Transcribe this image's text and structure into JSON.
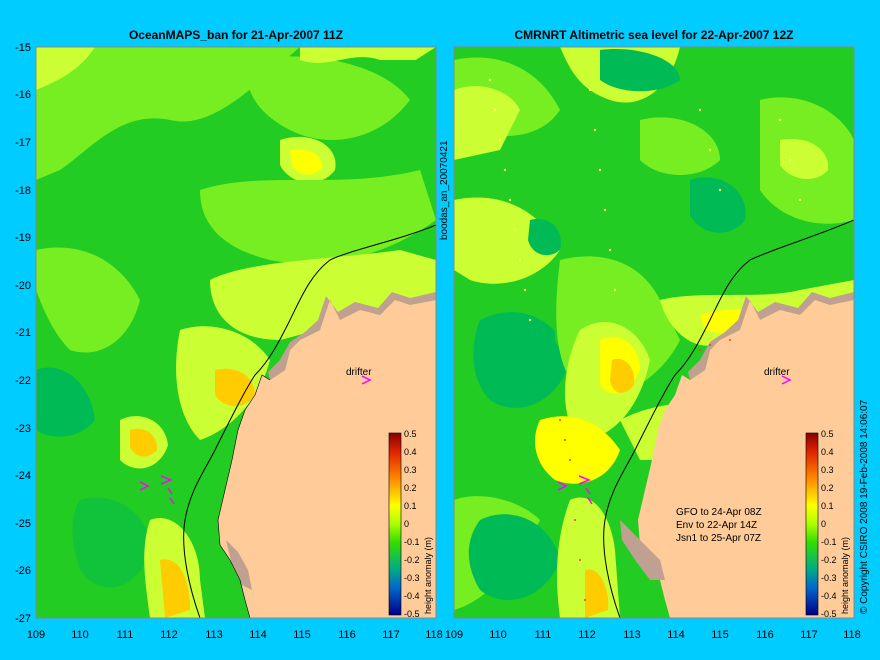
{
  "left_panel": {
    "title": "OceanMAPS_ban for 21-Apr-2007 11Z",
    "label": "drifter",
    "vertical_caption": "boodas_an_20070421"
  },
  "right_panel": {
    "title": "CMRNRT Altimetric sea level  for 22-Apr-2007 12Z",
    "label": "drifter",
    "notes": [
      "GFO to 24-Apr 08Z",
      "Env to 22-Apr 14Z",
      "Jsn1 to 25-Apr 07Z"
    ]
  },
  "axes": {
    "lat_ticks": [
      "-15",
      "-16",
      "-17",
      "-18",
      "-19",
      "-20",
      "-21",
      "-22",
      "-23",
      "-24",
      "-25",
      "-26",
      "-27"
    ],
    "lon_ticks": [
      "109",
      "110",
      "111",
      "112",
      "113",
      "114",
      "115",
      "116",
      "117",
      "118"
    ]
  },
  "colorbar": {
    "label": "height anomaly (m)",
    "ticks": [
      "0.5",
      "0.4",
      "0.3",
      "0.2",
      "0.1",
      "0",
      "-0.1",
      "-0.2",
      "-0.3",
      "-0.4",
      "-0.5"
    ]
  },
  "footer": "© Copyright CSIRO 2008  19-Feb-2008 14:06:07",
  "colors": {
    "background": "#00ccff",
    "land": "#ffcc99",
    "green_dark": "#00bb55",
    "green": "#22cc22",
    "green_light": "#77ee22",
    "yellow_green": "#ccff33",
    "yellow": "#ffff00",
    "orange": "#ffcc00",
    "drifter_marker": "#ff00ff"
  }
}
